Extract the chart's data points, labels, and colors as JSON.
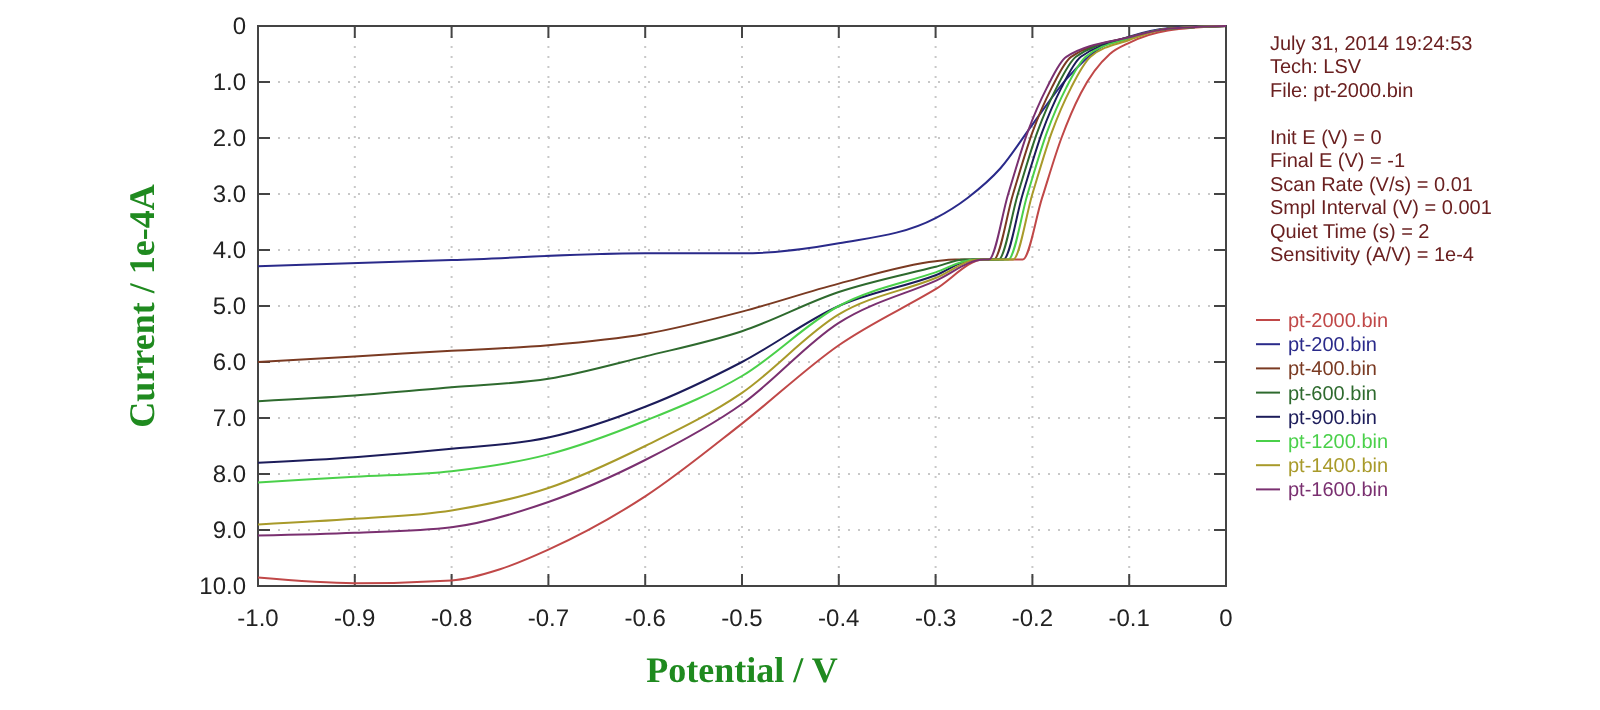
{
  "chart_data": {
    "type": "line",
    "xlabel": "Potential / V",
    "ylabel": "Current / 1e-4A",
    "xlim": [
      -1,
      0
    ],
    "ylim": [
      10,
      0
    ],
    "xticks": [
      {
        "value": -1,
        "label": "-1.0"
      },
      -0.9,
      -0.8,
      -0.7,
      -0.6,
      -0.5,
      -0.4,
      -0.3,
      -0.2,
      -0.1,
      0
    ],
    "yticks": [
      0,
      {
        "value": 1,
        "label": "1.0"
      },
      {
        "value": 2,
        "label": "2.0"
      },
      {
        "value": 3,
        "label": "3.0"
      },
      {
        "value": 4,
        "label": "4.0"
      },
      {
        "value": 5,
        "label": "5.0"
      },
      {
        "value": 6,
        "label": "6.0"
      },
      {
        "value": 7,
        "label": "7.0"
      },
      {
        "value": 8,
        "label": "8.0"
      },
      {
        "value": 9,
        "label": "9.0"
      },
      {
        "value": 10,
        "label": "10.0"
      }
    ],
    "grid": true,
    "legend": "right",
    "line_style": "solid",
    "annotations": [
      "July 31, 2014   19:24:53",
      "Tech: LSV",
      "File: pt-2000.bin",
      "Init E (V) = 0",
      "Final E (V) = -1",
      "Scan Rate (V/s) = 0.01",
      "Smpl Interval (V) = 0.001",
      "Quiet Time (s) = 2",
      "Sensitivity (A/V) = 1e-4"
    ],
    "series": [
      {
        "name": "pt-2000.bin",
        "color": "#c04848",
        "x": [
          -1,
          -0.9,
          -0.8,
          -0.75,
          -0.7,
          -0.6,
          -0.5,
          -0.4,
          -0.3,
          -0.25,
          -0.21,
          -0.19,
          -0.17,
          -0.15,
          -0.12,
          -0.1,
          -0.06,
          0
        ],
        "values": [
          9.85,
          9.95,
          9.9,
          9.7,
          9.35,
          8.4,
          7.1,
          5.7,
          4.7,
          4.17,
          4.17,
          3.07,
          2.0,
          1.2,
          0.5,
          0.3,
          0.08,
          0
        ]
      },
      {
        "name": "pt-200.bin",
        "color": "#2a2a8a",
        "x": [
          -1,
          -0.8,
          -0.6,
          -0.5,
          -0.4,
          -0.3,
          -0.267,
          -0.233,
          -0.2,
          -0.164,
          -0.13,
          -0.1,
          -0.06,
          0
        ],
        "values": [
          4.29,
          4.18,
          4.06,
          4.06,
          3.88,
          3.43,
          3.07,
          2.54,
          1.76,
          0.93,
          0.39,
          0.19,
          0.04,
          0
        ]
      },
      {
        "name": "pt-400.bin",
        "color": "#7a3a22",
        "x": [
          -1,
          -0.9,
          -0.8,
          -0.7,
          -0.6,
          -0.5,
          -0.4,
          -0.3,
          -0.28,
          -0.24,
          -0.22,
          -0.2,
          -0.18,
          -0.16,
          -0.1,
          -0.06,
          0
        ],
        "values": [
          6.0,
          5.9,
          5.8,
          5.7,
          5.5,
          5.1,
          4.6,
          4.2,
          4.17,
          4.17,
          3.0,
          1.9,
          1.1,
          0.55,
          0.2,
          0.05,
          0
        ]
      },
      {
        "name": "pt-600.bin",
        "color": "#2e6a2e",
        "x": [
          -1,
          -0.9,
          -0.8,
          -0.7,
          -0.6,
          -0.5,
          -0.4,
          -0.3,
          -0.27,
          -0.235,
          -0.215,
          -0.195,
          -0.175,
          -0.155,
          -0.1,
          -0.06,
          0
        ],
        "values": [
          6.7,
          6.6,
          6.45,
          6.3,
          5.9,
          5.45,
          4.75,
          4.3,
          4.17,
          4.17,
          3.0,
          1.9,
          1.1,
          0.55,
          0.2,
          0.05,
          0
        ]
      },
      {
        "name": "pt-900.bin",
        "color": "#1c1c5a",
        "x": [
          -1,
          -0.9,
          -0.8,
          -0.7,
          -0.6,
          -0.5,
          -0.4,
          -0.3,
          -0.26,
          -0.23,
          -0.21,
          -0.19,
          -0.17,
          -0.15,
          -0.1,
          -0.06,
          0
        ],
        "values": [
          7.8,
          7.7,
          7.55,
          7.35,
          6.8,
          6.0,
          5.0,
          4.45,
          4.17,
          4.17,
          3.0,
          1.9,
          1.1,
          0.55,
          0.22,
          0.05,
          0
        ]
      },
      {
        "name": "pt-1200.bin",
        "color": "#4ad04a",
        "x": [
          -1,
          -0.9,
          -0.8,
          -0.7,
          -0.6,
          -0.5,
          -0.4,
          -0.3,
          -0.26,
          -0.225,
          -0.205,
          -0.185,
          -0.165,
          -0.145,
          -0.1,
          -0.06,
          0
        ],
        "values": [
          8.15,
          8.05,
          7.95,
          7.65,
          7.05,
          6.25,
          5.0,
          4.4,
          4.17,
          4.17,
          3.0,
          1.9,
          1.1,
          0.55,
          0.22,
          0.05,
          0
        ]
      },
      {
        "name": "pt-1400.bin",
        "color": "#a89a2a",
        "x": [
          -1,
          -0.9,
          -0.8,
          -0.7,
          -0.6,
          -0.5,
          -0.4,
          -0.3,
          -0.255,
          -0.22,
          -0.2,
          -0.18,
          -0.16,
          -0.14,
          -0.1,
          -0.06,
          0
        ],
        "values": [
          8.9,
          8.8,
          8.65,
          8.25,
          7.5,
          6.55,
          5.15,
          4.5,
          4.17,
          4.17,
          3.0,
          1.9,
          1.1,
          0.55,
          0.25,
          0.05,
          0
        ]
      },
      {
        "name": "pt-1600.bin",
        "color": "#7a3070",
        "x": [
          -1,
          -0.9,
          -0.8,
          -0.7,
          -0.6,
          -0.5,
          -0.4,
          -0.3,
          -0.25,
          -0.245,
          -0.225,
          -0.205,
          -0.185,
          -0.165,
          -0.1,
          -0.06,
          0
        ],
        "values": [
          9.1,
          9.05,
          8.95,
          8.5,
          7.75,
          6.75,
          5.3,
          4.55,
          4.17,
          4.17,
          3.0,
          1.9,
          1.1,
          0.55,
          0.2,
          0.05,
          0
        ]
      }
    ]
  }
}
